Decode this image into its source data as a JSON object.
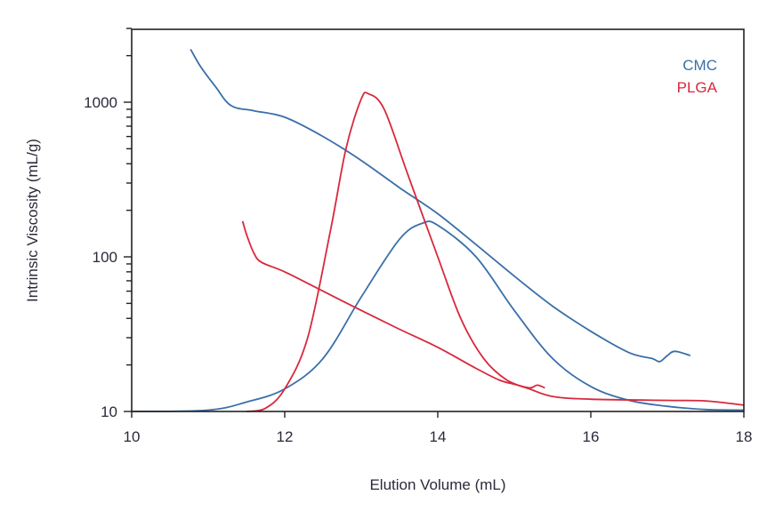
{
  "chart_data": {
    "type": "line",
    "title": "",
    "xlabel": "Elution Volume (mL)",
    "ylabel": "Intrinsic Viscosity (mL/g)",
    "xlim": [
      10,
      18
    ],
    "ylim": [
      10,
      3000
    ],
    "yscale": "log",
    "grid": false,
    "legend_position": "top-right",
    "x_ticks": [
      10,
      12,
      14,
      16,
      18
    ],
    "y_ticks": [
      10,
      100,
      1000
    ],
    "legend": [
      {
        "name": "CMC",
        "color": "#3a6fa8"
      },
      {
        "name": "PLGA",
        "color": "#d8283c"
      }
    ],
    "series": [
      {
        "name": "CMC",
        "role": "intrinsic viscosity",
        "color": "#3a6fa8",
        "x": [
          10.77,
          10.9,
          11.1,
          11.3,
          11.6,
          12.0,
          12.5,
          13.0,
          13.5,
          14.0,
          14.5,
          15.0,
          15.5,
          16.0,
          16.5,
          16.8,
          16.9,
          17.0,
          17.1,
          17.3
        ],
        "y": [
          2200,
          1700,
          1250,
          950,
          880,
          800,
          600,
          420,
          280,
          190,
          120,
          75,
          48,
          33,
          24,
          22,
          21,
          23,
          24.5,
          23
        ]
      },
      {
        "name": "CMC",
        "role": "concentration trace",
        "color": "#3a6fa8",
        "x": [
          10.0,
          11.0,
          11.5,
          12.0,
          12.5,
          13.0,
          13.5,
          13.8,
          14.0,
          14.5,
          15.0,
          15.5,
          16.0,
          16.5,
          17.0,
          17.5,
          18.0
        ],
        "y": [
          10,
          10.2,
          11.5,
          14,
          22,
          55,
          130,
          165,
          160,
          100,
          45,
          22,
          14.5,
          11.8,
          10.8,
          10.3,
          10.2
        ]
      },
      {
        "name": "PLGA",
        "role": "intrinsic viscosity",
        "color": "#d8283c",
        "x": [
          11.45,
          11.5,
          11.6,
          11.7,
          12.0,
          12.5,
          13.0,
          13.5,
          14.0,
          14.5,
          14.8,
          15.0,
          15.2,
          15.3,
          15.4
        ],
        "y": [
          170,
          140,
          105,
          92,
          80,
          60,
          45,
          34,
          26,
          19,
          16,
          15,
          14.2,
          14.8,
          14.2
        ]
      },
      {
        "name": "PLGA",
        "role": "concentration trace",
        "color": "#d8283c",
        "x": [
          11.5,
          11.75,
          12.0,
          12.3,
          12.6,
          12.8,
          13.0,
          13.1,
          13.3,
          13.6,
          14.0,
          14.3,
          14.6,
          14.9,
          15.2,
          15.5,
          16.0,
          17.0,
          17.5,
          18.0
        ],
        "y": [
          10,
          10.5,
          14,
          30,
          150,
          500,
          1050,
          1130,
          900,
          350,
          100,
          40,
          22,
          16,
          14,
          12.5,
          12,
          11.8,
          11.7,
          11
        ]
      }
    ]
  },
  "axes": {
    "x_title": "Elution Volume (mL)",
    "y_title": "Intrinsic Viscosity (mL/g)",
    "x_tick_labels": [
      "10",
      "12",
      "14",
      "16",
      "18"
    ],
    "y_tick_labels": [
      "10",
      "100",
      "1000"
    ]
  },
  "legend": {
    "cmc": "CMC",
    "plga": "PLGA"
  }
}
